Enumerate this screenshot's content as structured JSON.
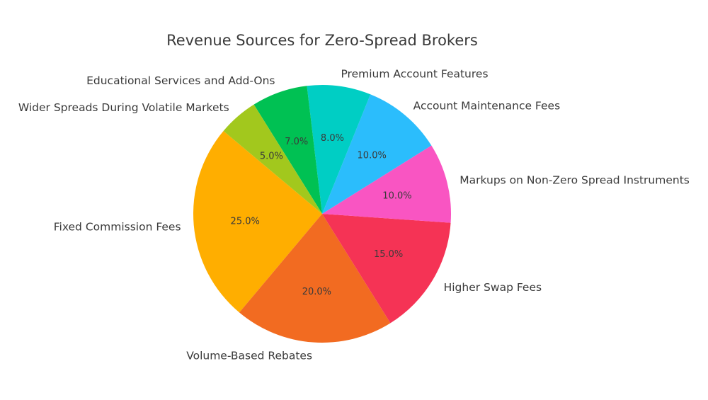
{
  "chart_data": {
    "type": "pie",
    "title": "Revenue Sources for Zero-Spread Brokers",
    "start_angle_deg": 140,
    "direction": "counterclockwise",
    "slices": [
      {
        "label": "Fixed Commission Fees",
        "value": 25.0,
        "pct_label": "25.0%",
        "color": "#FFAE00"
      },
      {
        "label": "Volume-Based Rebates",
        "value": 20.0,
        "pct_label": "20.0%",
        "color": "#F26B21"
      },
      {
        "label": "Higher Swap Fees",
        "value": 15.0,
        "pct_label": "15.0%",
        "color": "#F53355"
      },
      {
        "label": "Markups on Non-Zero Spread Instruments",
        "value": 10.0,
        "pct_label": "10.0%",
        "color": "#F955C2"
      },
      {
        "label": "Account Maintenance Fees",
        "value": 10.0,
        "pct_label": "10.0%",
        "color": "#2BBDFC"
      },
      {
        "label": "Premium Account Features",
        "value": 8.0,
        "pct_label": "8.0%",
        "color": "#00CEC4"
      },
      {
        "label": "Educational Services and Add-Ons",
        "value": 7.0,
        "pct_label": "7.0%",
        "color": "#00C153"
      },
      {
        "label": "Wider Spreads During Volatile Markets",
        "value": 5.0,
        "pct_label": "5.0%",
        "color": "#A2C81D"
      }
    ]
  }
}
